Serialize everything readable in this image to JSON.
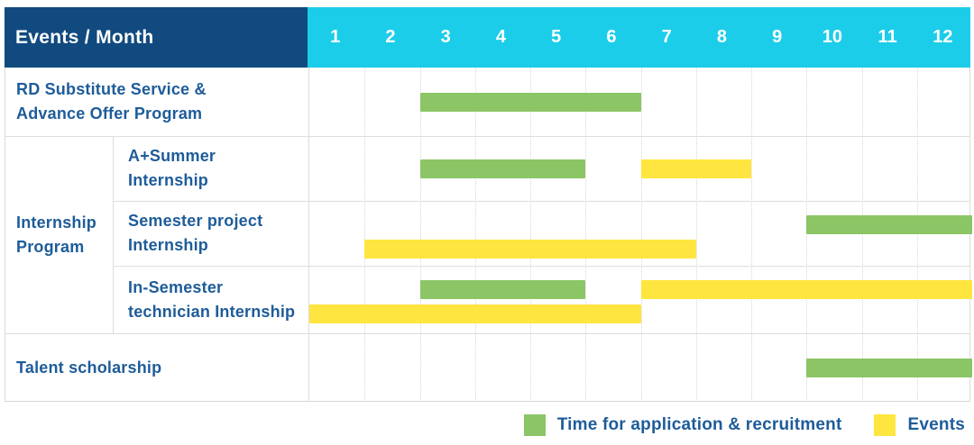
{
  "header": {
    "title": "Events / Month",
    "months": [
      "1",
      "2",
      "3",
      "4",
      "5",
      "6",
      "7",
      "8",
      "9",
      "10",
      "11",
      "12"
    ]
  },
  "colors": {
    "header_bg": "#114a7e",
    "months_bg": "#1bcde9",
    "application": "#8bc566",
    "event": "#ffe53f",
    "label_text": "#1e5c99"
  },
  "chart_data": {
    "type": "bar",
    "subtype": "gantt-schedule",
    "x_axis_label": "Month",
    "x_range": [
      1,
      12
    ],
    "grid": true,
    "legend_position": "bottom-right",
    "rows": [
      {
        "label_lines": [
          "RD Substitute Service &",
          "Advance Offer Program"
        ],
        "row_lines": 1,
        "bars": [
          {
            "kind": "application",
            "start_month": 3,
            "end_month": 6,
            "line": 0
          }
        ]
      },
      {
        "group_lines": [
          "Internship",
          "Program"
        ],
        "label_lines": [
          "A+Summer",
          "Internship"
        ],
        "row_lines": 1,
        "bars": [
          {
            "kind": "application",
            "start_month": 3,
            "end_month": 5,
            "line": 0
          },
          {
            "kind": "event",
            "start_month": 7,
            "end_month": 8,
            "line": 0
          }
        ]
      },
      {
        "label_lines": [
          "Semester project",
          "Internship"
        ],
        "row_lines": 2,
        "bars": [
          {
            "kind": "application",
            "start_month": 10,
            "end_month": 12,
            "line": 0
          },
          {
            "kind": "event",
            "start_month": 2,
            "end_month": 7,
            "line": 1
          }
        ]
      },
      {
        "label_lines": [
          "In-Semester",
          "technician Internship"
        ],
        "row_lines": 2,
        "bars": [
          {
            "kind": "application",
            "start_month": 3,
            "end_month": 5,
            "line": 0
          },
          {
            "kind": "event",
            "start_month": 7,
            "end_month": 12,
            "line": 0
          },
          {
            "kind": "event",
            "start_month": 1,
            "end_month": 6,
            "line": 1
          }
        ]
      },
      {
        "label_lines": [
          "Talent scholarship"
        ],
        "row_lines": 1,
        "bars": [
          {
            "kind": "application",
            "start_month": 10,
            "end_month": 12,
            "line": 0
          }
        ]
      }
    ]
  },
  "legend": [
    {
      "kind": "application",
      "label": "Time for application & recruitment"
    },
    {
      "kind": "event",
      "label": "Events"
    }
  ]
}
